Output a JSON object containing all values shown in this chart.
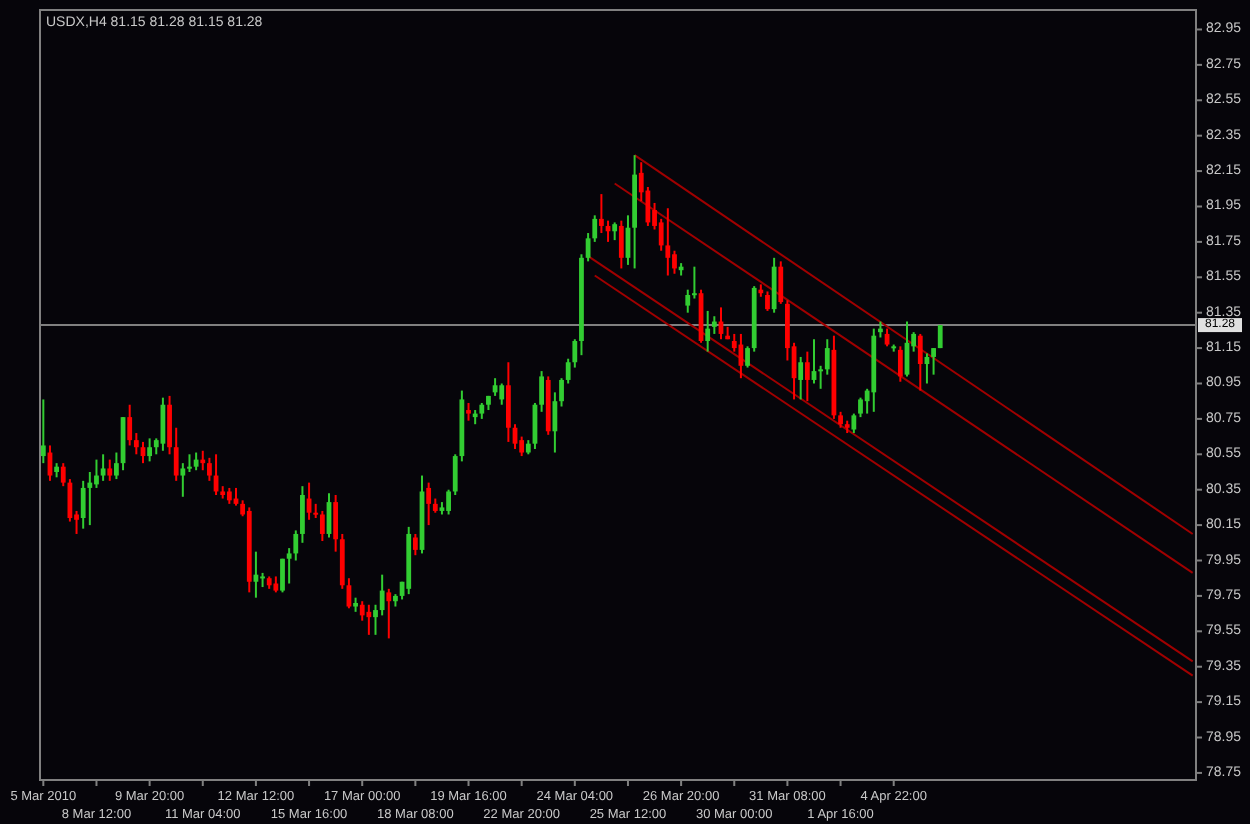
{
  "chart_data": {
    "type": "candlestick",
    "title": "USDX,H4 81.15 81.28 81.15 81.28",
    "categories": [
      "5 Mar 2010",
      null,
      null,
      null,
      null,
      null,
      null,
      null,
      "8 Mar 12:00",
      null,
      null,
      null,
      null,
      null,
      null,
      null,
      "9 Mar 20:00",
      null,
      null,
      null,
      null,
      null,
      null,
      null,
      "11 Mar 04:00",
      null,
      null,
      null,
      null,
      null,
      null,
      null,
      "12 Mar 12:00",
      null,
      null,
      null,
      null,
      null,
      null,
      null,
      "15 Mar 16:00",
      null,
      null,
      null,
      null,
      null,
      null,
      null,
      "17 Mar 00:00",
      null,
      null,
      null,
      null,
      null,
      null,
      null,
      "18 Mar 08:00",
      null,
      null,
      null,
      null,
      null,
      null,
      null,
      "19 Mar 16:00",
      null,
      null,
      null,
      null,
      null,
      null,
      null,
      "22 Mar 20:00",
      null,
      null,
      null,
      null,
      null,
      null,
      null,
      "24 Mar 04:00",
      null,
      null,
      null,
      null,
      null,
      null,
      null,
      "25 Mar 12:00",
      null,
      null,
      null,
      null,
      null,
      null,
      null,
      "26 Mar 20:00",
      null,
      null,
      null,
      null,
      null,
      null,
      null,
      "30 Mar 00:00",
      null,
      null,
      null,
      null,
      null,
      null,
      null,
      "31 Mar 08:00",
      null,
      null,
      null,
      null,
      null,
      null,
      null,
      "1 Apr 16:00",
      null,
      null,
      null,
      null,
      null,
      null,
      null,
      "4 Apr 22:00",
      null,
      null,
      null,
      null,
      null,
      null,
      null,
      null,
      null,
      null,
      null,
      null,
      null,
      null,
      null,
      null,
      null,
      null,
      null,
      null,
      null,
      null,
      null,
      null,
      null,
      null,
      null,
      null,
      null,
      null,
      null,
      null,
      null,
      null,
      null,
      null,
      null,
      null,
      null,
      null,
      null,
      null,
      null,
      null,
      null
    ],
    "ohlc": [
      [
        80.54,
        80.86,
        80.5,
        80.6
      ],
      [
        80.56,
        80.6,
        80.4,
        80.43
      ],
      [
        80.45,
        80.5,
        80.42,
        80.48
      ],
      [
        80.48,
        80.5,
        80.37,
        80.39
      ],
      [
        80.39,
        80.41,
        80.17,
        80.19
      ],
      [
        80.21,
        80.23,
        80.1,
        80.18
      ],
      [
        80.19,
        80.4,
        80.13,
        80.36
      ],
      [
        80.36,
        80.45,
        80.15,
        80.39
      ],
      [
        80.38,
        80.52,
        80.36,
        80.43
      ],
      [
        80.43,
        80.55,
        80.4,
        80.47
      ],
      [
        80.47,
        80.52,
        80.4,
        80.43
      ],
      [
        80.43,
        80.56,
        80.41,
        80.5
      ],
      [
        80.5,
        80.76,
        80.46,
        80.76
      ],
      [
        80.76,
        80.83,
        80.6,
        80.63
      ],
      [
        80.63,
        80.67,
        80.55,
        80.59
      ],
      [
        80.59,
        80.62,
        80.5,
        80.54
      ],
      [
        80.54,
        80.64,
        80.51,
        80.59
      ],
      [
        80.59,
        80.64,
        80.55,
        80.63
      ],
      [
        80.61,
        80.87,
        80.57,
        80.83
      ],
      [
        80.83,
        80.88,
        80.55,
        80.59
      ],
      [
        80.59,
        80.7,
        80.4,
        80.43
      ],
      [
        80.43,
        80.5,
        80.31,
        80.47
      ],
      [
        80.47,
        80.55,
        80.45,
        80.48
      ],
      [
        80.48,
        80.56,
        80.46,
        80.52
      ],
      [
        80.52,
        80.57,
        80.46,
        80.5
      ],
      [
        80.5,
        80.53,
        80.4,
        80.43
      ],
      [
        80.43,
        80.55,
        80.32,
        80.34
      ],
      [
        80.34,
        80.37,
        80.3,
        80.32
      ],
      [
        80.34,
        80.36,
        80.27,
        80.29
      ],
      [
        80.3,
        80.36,
        80.26,
        80.27
      ],
      [
        80.27,
        80.29,
        80.2,
        80.21
      ],
      [
        80.23,
        80.25,
        79.77,
        79.83
      ],
      [
        79.83,
        80.0,
        79.74,
        79.87
      ],
      [
        79.85,
        79.88,
        79.8,
        79.86
      ],
      [
        79.85,
        79.86,
        79.79,
        79.81
      ],
      [
        79.82,
        79.86,
        79.77,
        79.78
      ],
      [
        79.78,
        79.96,
        79.77,
        79.96
      ],
      [
        79.96,
        80.02,
        79.82,
        79.99
      ],
      [
        79.99,
        80.12,
        79.95,
        80.1
      ],
      [
        80.1,
        80.37,
        80.05,
        80.32
      ],
      [
        80.3,
        80.39,
        80.18,
        80.22
      ],
      [
        80.22,
        80.27,
        80.19,
        80.21
      ],
      [
        80.21,
        80.23,
        80.06,
        80.1
      ],
      [
        80.1,
        80.33,
        80.08,
        80.28
      ],
      [
        80.28,
        80.32,
        80.0,
        80.07
      ],
      [
        80.07,
        80.1,
        79.79,
        79.81
      ],
      [
        79.81,
        79.85,
        79.68,
        79.69
      ],
      [
        79.69,
        79.74,
        79.66,
        79.71
      ],
      [
        79.7,
        79.72,
        79.61,
        79.64
      ],
      [
        79.66,
        79.7,
        79.53,
        79.63
      ],
      [
        79.63,
        79.7,
        79.53,
        79.67
      ],
      [
        79.67,
        79.87,
        79.64,
        79.78
      ],
      [
        79.77,
        79.79,
        79.51,
        79.72
      ],
      [
        79.72,
        79.76,
        79.69,
        79.75
      ],
      [
        79.75,
        79.83,
        79.73,
        79.83
      ],
      [
        79.79,
        80.14,
        79.76,
        80.1
      ],
      [
        80.08,
        80.1,
        79.98,
        80.01
      ],
      [
        80.01,
        80.43,
        79.99,
        80.34
      ],
      [
        80.36,
        80.39,
        80.15,
        80.27
      ],
      [
        80.27,
        80.3,
        80.22,
        80.23
      ],
      [
        80.23,
        80.28,
        80.21,
        80.25
      ],
      [
        80.23,
        80.35,
        80.21,
        80.34
      ],
      [
        80.34,
        80.55,
        80.32,
        80.54
      ],
      [
        80.54,
        80.91,
        80.51,
        80.86
      ],
      [
        80.8,
        80.84,
        80.74,
        80.78
      ],
      [
        80.76,
        80.8,
        80.72,
        80.78
      ],
      [
        80.78,
        80.84,
        80.75,
        80.83
      ],
      [
        80.83,
        80.88,
        80.8,
        80.88
      ],
      [
        80.9,
        80.98,
        80.88,
        80.94
      ],
      [
        80.86,
        80.95,
        80.83,
        80.94
      ],
      [
        80.94,
        81.07,
        80.62,
        80.7
      ],
      [
        80.7,
        80.72,
        80.58,
        80.61
      ],
      [
        80.63,
        80.65,
        80.54,
        80.56
      ],
      [
        80.56,
        80.63,
        80.55,
        80.61
      ],
      [
        80.61,
        80.84,
        80.58,
        80.83
      ],
      [
        80.83,
        81.02,
        80.79,
        80.99
      ],
      [
        80.97,
        80.99,
        80.66,
        80.68
      ],
      [
        80.68,
        80.9,
        80.56,
        80.85
      ],
      [
        80.85,
        80.98,
        80.82,
        80.97
      ],
      [
        80.97,
        81.09,
        80.95,
        81.07
      ],
      [
        81.07,
        81.2,
        81.04,
        81.19
      ],
      [
        81.19,
        81.68,
        81.11,
        81.66
      ],
      [
        81.66,
        81.8,
        81.64,
        81.77
      ],
      [
        81.77,
        81.9,
        81.75,
        81.88
      ],
      [
        81.88,
        82.02,
        81.8,
        81.84
      ],
      [
        81.84,
        81.87,
        81.75,
        81.81
      ],
      [
        81.81,
        81.86,
        81.76,
        81.85
      ],
      [
        81.84,
        81.87,
        81.6,
        81.66
      ],
      [
        81.66,
        81.9,
        81.62,
        81.83
      ],
      [
        81.83,
        82.24,
        81.6,
        82.13
      ],
      [
        82.14,
        82.2,
        81.98,
        82.03
      ],
      [
        82.04,
        82.06,
        81.84,
        81.86
      ],
      [
        81.93,
        81.97,
        81.82,
        81.84
      ],
      [
        81.86,
        81.88,
        81.7,
        81.73
      ],
      [
        81.73,
        81.94,
        81.56,
        81.66
      ],
      [
        81.68,
        81.7,
        81.57,
        81.6
      ],
      [
        81.59,
        81.63,
        81.56,
        81.61
      ],
      [
        81.39,
        81.48,
        81.35,
        81.45
      ],
      [
        81.45,
        81.61,
        81.43,
        81.46
      ],
      [
        81.46,
        81.48,
        81.18,
        81.19
      ],
      [
        81.19,
        81.36,
        81.13,
        81.26
      ],
      [
        81.27,
        81.33,
        81.23,
        81.3
      ],
      [
        81.3,
        81.38,
        81.2,
        81.23
      ],
      [
        81.22,
        81.27,
        81.2,
        81.2
      ],
      [
        81.19,
        81.23,
        81.13,
        81.15
      ],
      [
        81.17,
        81.23,
        80.98,
        81.05
      ],
      [
        81.05,
        81.16,
        81.04,
        81.15
      ],
      [
        81.15,
        81.5,
        81.13,
        81.49
      ],
      [
        81.48,
        81.51,
        81.44,
        81.46
      ],
      [
        81.45,
        81.47,
        81.36,
        81.37
      ],
      [
        81.37,
        81.66,
        81.35,
        81.61
      ],
      [
        81.61,
        81.64,
        81.4,
        81.41
      ],
      [
        81.4,
        81.42,
        81.08,
        81.15
      ],
      [
        81.16,
        81.18,
        80.86,
        80.98
      ],
      [
        80.97,
        81.1,
        80.86,
        81.07
      ],
      [
        81.07,
        81.13,
        80.85,
        80.97
      ],
      [
        80.97,
        81.2,
        80.95,
        81.02
      ],
      [
        81.02,
        81.05,
        80.92,
        81.03
      ],
      [
        81.03,
        81.2,
        81.0,
        81.15
      ],
      [
        81.14,
        81.22,
        80.75,
        80.77
      ],
      [
        80.77,
        80.79,
        80.7,
        80.72
      ],
      [
        80.72,
        80.74,
        80.67,
        80.7
      ],
      [
        80.69,
        80.78,
        80.67,
        80.77
      ],
      [
        80.78,
        80.87,
        80.76,
        80.86
      ],
      [
        80.85,
        80.92,
        80.78,
        80.91
      ],
      [
        80.9,
        81.26,
        80.79,
        81.22
      ],
      [
        81.24,
        81.3,
        81.21,
        81.26
      ],
      [
        81.23,
        81.26,
        81.16,
        81.17
      ],
      [
        81.15,
        81.17,
        81.13,
        81.16
      ],
      [
        81.14,
        81.16,
        80.96,
        80.99
      ],
      [
        81.0,
        81.3,
        80.99,
        81.18
      ],
      [
        81.16,
        81.24,
        81.13,
        81.23
      ],
      [
        81.22,
        81.23,
        80.91,
        81.06
      ],
      [
        81.06,
        81.12,
        80.95,
        81.1
      ],
      [
        81.1,
        81.15,
        81.0,
        81.15
      ],
      [
        81.15,
        81.28,
        81.15,
        81.28
      ],
      null,
      null,
      null,
      null,
      null,
      null,
      null,
      null,
      null,
      null,
      null,
      null,
      null,
      null,
      null,
      null,
      null,
      null,
      null,
      null,
      null,
      null,
      null,
      null,
      null,
      null,
      null,
      null,
      null,
      null,
      null,
      null,
      null,
      null,
      null,
      null,
      null,
      null
    ],
    "colors": [
      "#32cd32",
      "#ff0000",
      "#32cd32",
      "#ff0000",
      "#ff0000",
      "#ff0000",
      "#32cd32",
      "#32cd32",
      "#32cd32",
      "#32cd32",
      "#ff0000",
      "#32cd32",
      "#32cd32",
      "#ff0000",
      "#ff0000",
      "#ff0000",
      "#32cd32",
      "#32cd32",
      "#32cd32",
      "#ff0000",
      "#ff0000",
      "#32cd32",
      "#32cd32",
      "#32cd32",
      "#ff0000",
      "#ff0000",
      "#ff0000",
      "#ff0000",
      "#ff0000",
      "#ff0000",
      "#ff0000",
      "#ff0000",
      "#32cd32",
      "#32cd32",
      "#ff0000",
      "#ff0000",
      "#32cd32",
      "#32cd32",
      "#32cd32",
      "#32cd32",
      "#ff0000",
      "#ff0000",
      "#ff0000",
      "#32cd32",
      "#ff0000",
      "#ff0000",
      "#ff0000",
      "#32cd32",
      "#ff0000",
      "#ff0000",
      "#32cd32",
      "#32cd32",
      "#ff0000",
      "#32cd32",
      "#32cd32",
      "#32cd32",
      "#ff0000",
      "#32cd32",
      "#ff0000",
      "#ff0000",
      "#32cd32",
      "#32cd32",
      "#32cd32",
      "#32cd32",
      "#ff0000",
      "#32cd32",
      "#32cd32",
      "#32cd32",
      "#32cd32",
      "#32cd32",
      "#ff0000",
      "#ff0000",
      "#ff0000",
      "#32cd32",
      "#32cd32",
      "#32cd32",
      "#ff0000",
      "#32cd32",
      "#32cd32",
      "#32cd32",
      "#32cd32",
      "#32cd32",
      "#32cd32",
      "#32cd32",
      "#ff0000",
      "#ff0000",
      "#32cd32",
      "#ff0000",
      "#32cd32",
      "#32cd32",
      "#ff0000",
      "#ff0000",
      "#ff0000",
      "#ff0000",
      "#ff0000",
      "#ff0000",
      "#32cd32",
      "#32cd32",
      "#32cd32",
      "#ff0000",
      "#32cd32",
      "#32cd32",
      "#ff0000",
      "#ff0000",
      "#ff0000",
      "#ff0000",
      "#32cd32",
      "#32cd32",
      "#ff0000",
      "#ff0000",
      "#32cd32",
      "#ff0000",
      "#ff0000",
      "#ff0000",
      "#32cd32",
      "#ff0000",
      "#32cd32",
      "#32cd32",
      "#32cd32",
      "#ff0000",
      "#ff0000",
      "#ff0000",
      "#32cd32",
      "#32cd32",
      "#32cd32",
      "#32cd32",
      "#32cd32",
      "#ff0000",
      "#32cd32",
      "#ff0000",
      "#32cd32",
      "#32cd32",
      "#ff0000",
      "#32cd32",
      "#32cd32",
      "#32cd32",
      null,
      null,
      null,
      null,
      null,
      null,
      null,
      null,
      null,
      null,
      null,
      null,
      null,
      null,
      null,
      null,
      null,
      null,
      null,
      null,
      null,
      null,
      null,
      null,
      null,
      null,
      null,
      null,
      null,
      null,
      null,
      null,
      null,
      null,
      null,
      null,
      null,
      null
    ],
    "series": [
      {
        "type": "line",
        "color": "#a00000",
        "values": [
          null,
          null,
          null,
          null,
          null,
          null,
          null,
          null,
          null,
          null,
          null,
          null,
          null,
          null,
          null,
          null,
          null,
          null,
          null,
          null,
          null,
          null,
          null,
          null,
          null,
          null,
          null,
          null,
          null,
          null,
          null,
          null,
          null,
          null,
          null,
          null,
          null,
          null,
          null,
          null,
          null,
          null,
          null,
          null,
          null,
          null,
          null,
          null,
          null,
          null,
          null,
          null,
          null,
          null,
          null,
          null,
          null,
          null,
          null,
          null,
          null,
          null,
          null,
          null,
          null,
          null,
          null,
          null,
          null,
          null,
          null,
          null,
          null,
          null,
          null,
          null,
          null,
          null,
          null,
          null,
          null,
          null,
          null,
          null,
          null,
          null,
          null,
          null,
          null,
          82.24,
          null,
          null,
          null,
          null,
          null,
          null,
          null,
          null,
          null,
          null,
          null,
          null,
          null,
          null,
          null,
          null,
          null,
          null,
          null,
          null,
          null,
          null,
          null,
          null,
          null,
          null,
          null,
          null,
          null,
          null,
          null,
          null,
          null,
          null,
          null,
          null,
          null,
          null,
          null,
          null,
          null,
          null,
          null,
          null,
          null,
          null,
          null,
          null,
          null,
          null,
          null,
          null,
          null,
          null,
          null,
          null,
          null,
          null,
          null,
          null,
          null,
          null,
          null,
          null,
          null,
          null,
          null,
          null,
          null,
          null,
          null,
          null,
          null,
          null,
          null,
          null,
          null,
          null,
          null,
          null,
          null,
          null,
          null,
          80.1
        ]
      },
      {
        "type": "line",
        "color": "#a00000",
        "values": [
          null,
          null,
          null,
          null,
          null,
          null,
          null,
          null,
          null,
          null,
          null,
          null,
          null,
          null,
          null,
          null,
          null,
          null,
          null,
          null,
          null,
          null,
          null,
          null,
          null,
          null,
          null,
          null,
          null,
          null,
          null,
          null,
          null,
          null,
          null,
          null,
          null,
          null,
          null,
          null,
          null,
          null,
          null,
          null,
          null,
          null,
          null,
          null,
          null,
          null,
          null,
          null,
          null,
          null,
          null,
          null,
          null,
          null,
          null,
          null,
          null,
          null,
          null,
          null,
          null,
          null,
          null,
          null,
          null,
          null,
          null,
          null,
          null,
          null,
          null,
          null,
          null,
          null,
          null,
          null,
          null,
          null,
          null,
          null,
          null,
          null,
          82.08,
          null,
          null,
          null,
          null,
          null,
          null,
          null,
          null,
          null,
          null,
          null,
          null,
          null,
          null,
          null,
          null,
          null,
          null,
          null,
          null,
          null,
          null,
          null,
          null,
          null,
          null,
          null,
          null,
          null,
          null,
          null,
          null,
          null,
          null,
          null,
          null,
          null,
          null,
          null,
          null,
          null,
          null,
          null,
          null,
          null,
          null,
          null,
          null,
          null,
          null,
          null,
          null,
          null,
          null,
          null,
          null,
          null,
          null,
          null,
          null,
          null,
          null,
          null,
          null,
          null,
          null,
          null,
          null,
          null,
          null,
          null,
          null,
          null,
          null,
          null,
          null,
          null,
          null,
          null,
          null,
          null,
          null,
          null,
          null,
          null,
          null,
          79.88
        ]
      },
      {
        "type": "line",
        "color": "#a00000",
        "values": [
          null,
          null,
          null,
          null,
          null,
          null,
          null,
          null,
          null,
          null,
          null,
          null,
          null,
          null,
          null,
          null,
          null,
          null,
          null,
          null,
          null,
          null,
          null,
          null,
          null,
          null,
          null,
          null,
          null,
          null,
          null,
          null,
          null,
          null,
          null,
          null,
          null,
          null,
          null,
          null,
          null,
          null,
          null,
          null,
          null,
          null,
          null,
          null,
          null,
          null,
          null,
          null,
          null,
          null,
          null,
          null,
          null,
          null,
          null,
          null,
          null,
          null,
          null,
          null,
          null,
          null,
          null,
          null,
          null,
          null,
          null,
          null,
          null,
          null,
          null,
          null,
          null,
          null,
          null,
          null,
          null,
          null,
          81.67,
          null,
          null,
          null,
          null,
          null,
          null,
          null,
          null,
          null,
          null,
          null,
          null,
          null,
          null,
          null,
          null,
          null,
          null,
          null,
          null,
          null,
          null,
          null,
          null,
          null,
          null,
          null,
          null,
          null,
          null,
          null,
          null,
          null,
          null,
          null,
          null,
          null,
          null,
          null,
          null,
          null,
          null,
          null,
          null,
          null,
          null,
          null,
          null,
          null,
          null,
          null,
          null,
          null,
          null,
          null,
          null,
          null,
          null,
          null,
          null,
          null,
          null,
          null,
          null,
          null,
          null,
          null,
          null,
          null,
          null,
          null,
          null,
          null,
          null,
          null,
          null,
          null,
          null,
          null,
          null,
          null,
          null,
          null,
          null,
          null,
          null,
          null,
          null,
          null,
          null,
          79.38
        ]
      },
      {
        "type": "line",
        "color": "#a00000",
        "values": [
          null,
          null,
          null,
          null,
          null,
          null,
          null,
          null,
          null,
          null,
          null,
          null,
          null,
          null,
          null,
          null,
          null,
          null,
          null,
          null,
          null,
          null,
          null,
          null,
          null,
          null,
          null,
          null,
          null,
          null,
          null,
          null,
          null,
          null,
          null,
          null,
          null,
          null,
          null,
          null,
          null,
          null,
          null,
          null,
          null,
          null,
          null,
          null,
          null,
          null,
          null,
          null,
          null,
          null,
          null,
          null,
          null,
          null,
          null,
          null,
          null,
          null,
          null,
          null,
          null,
          null,
          null,
          null,
          null,
          null,
          null,
          null,
          null,
          null,
          null,
          null,
          null,
          null,
          null,
          null,
          null,
          null,
          null,
          81.56,
          null,
          null,
          null,
          null,
          null,
          null,
          null,
          null,
          null,
          null,
          null,
          null,
          null,
          null,
          null,
          null,
          null,
          null,
          null,
          null,
          null,
          null,
          null,
          null,
          null,
          null,
          null,
          null,
          null,
          null,
          null,
          null,
          null,
          null,
          null,
          null,
          null,
          null,
          null,
          null,
          null,
          null,
          null,
          null,
          null,
          null,
          null,
          null,
          null,
          null,
          null,
          null,
          null,
          null,
          null,
          null,
          null,
          null,
          null,
          null,
          null,
          null,
          null,
          null,
          null,
          null,
          null,
          null,
          null,
          null,
          null,
          null,
          null,
          null,
          null,
          null,
          null,
          null,
          null,
          null,
          null,
          null,
          null,
          null,
          null,
          null,
          null,
          null,
          null,
          79.3
        ]
      }
    ],
    "ylim": [
      78.71,
      83.06
    ],
    "yticks": [
      82.95,
      82.75,
      82.55,
      82.35,
      82.15,
      81.95,
      81.75,
      81.55,
      81.35,
      81.15,
      80.95,
      80.75,
      80.55,
      80.35,
      80.15,
      79.95,
      79.75,
      79.55,
      79.35,
      79.15,
      78.95,
      78.75
    ],
    "ref_lines": [
      {
        "axis": "y",
        "value": 81.28,
        "label": "81.28",
        "color": "#808080"
      }
    ]
  }
}
